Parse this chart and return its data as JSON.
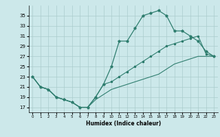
{
  "xlabel": "Humidex (Indice chaleur)",
  "background_color": "#cce8ea",
  "grid_color": "#aacccc",
  "line_color": "#2e7d6e",
  "x_hours": [
    0,
    1,
    2,
    3,
    4,
    5,
    6,
    7,
    8,
    9,
    10,
    11,
    12,
    13,
    14,
    15,
    16,
    17,
    18,
    19,
    20,
    21,
    22,
    23
  ],
  "humidex_curve": [
    23,
    21,
    20.5,
    19,
    18.5,
    18,
    17,
    17,
    19,
    21.5,
    25,
    30,
    30,
    32.5,
    35,
    35.5,
    36,
    35,
    32,
    32,
    31,
    30,
    28,
    27
  ],
  "line1": [
    23,
    21,
    20.5,
    19,
    18.5,
    18,
    17,
    17,
    19,
    21.5,
    22,
    23,
    24,
    25,
    26,
    27,
    28,
    29,
    29.5,
    30,
    30.5,
    31,
    27.5,
    27
  ],
  "line2": [
    23,
    21,
    20.5,
    19,
    18.5,
    18,
    17,
    17,
    18.5,
    19.5,
    20.5,
    21,
    21.5,
    22,
    22.5,
    23,
    23.5,
    24.5,
    25.5,
    26,
    26.5,
    27,
    27,
    27
  ],
  "ylim": [
    16,
    37
  ],
  "yticks": [
    17,
    19,
    21,
    23,
    25,
    27,
    29,
    31,
    33,
    35
  ],
  "xlim": [
    -0.5,
    23.5
  ],
  "xticks": [
    0,
    1,
    2,
    3,
    4,
    5,
    6,
    7,
    8,
    9,
    10,
    11,
    12,
    13,
    14,
    15,
    16,
    17,
    18,
    19,
    20,
    21,
    22,
    23
  ]
}
